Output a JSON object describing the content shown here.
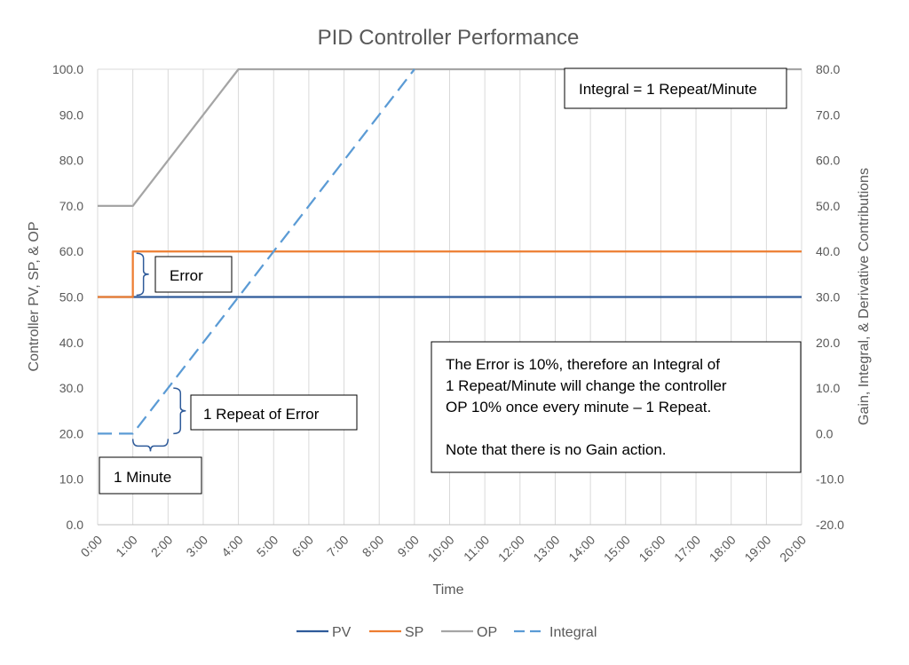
{
  "chart_data": {
    "type": "line",
    "title": "PID Controller Performance",
    "xlabel": "Time",
    "ylabel": "Controller PV, SP, & OP",
    "y2label": "Gain, Integral, & Derivative Contributions",
    "x": [
      0,
      1,
      2,
      3,
      4,
      5,
      6,
      7,
      8,
      9,
      10,
      11,
      12,
      13,
      14,
      15,
      16,
      17,
      18,
      19,
      20
    ],
    "x_tick_labels": [
      "0:00",
      "1:00",
      "2:00",
      "3:00",
      "4:00",
      "5:00",
      "6:00",
      "7:00",
      "8:00",
      "9:00",
      "10:00",
      "11:00",
      "12:00",
      "13:00",
      "14:00",
      "15:00",
      "16:00",
      "17:00",
      "18:00",
      "19:00",
      "20:00"
    ],
    "ylim": [
      0,
      100
    ],
    "y_ticks": [
      0,
      10,
      20,
      30,
      40,
      50,
      60,
      70,
      80,
      90,
      100
    ],
    "y_tick_labels": [
      "0.0",
      "10.0",
      "20.0",
      "30.0",
      "40.0",
      "50.0",
      "60.0",
      "70.0",
      "80.0",
      "90.0",
      "100.0"
    ],
    "y2lim": [
      -20,
      80
    ],
    "y2_ticks": [
      -20,
      -10,
      0,
      10,
      20,
      30,
      40,
      50,
      60,
      70,
      80
    ],
    "y2_tick_labels": [
      "-20.0",
      "-10.0",
      "0.0",
      "10.0",
      "20.0",
      "30.0",
      "40.0",
      "50.0",
      "60.0",
      "70.0",
      "80.0"
    ],
    "grid": "vertical",
    "legend": "bottom",
    "series": [
      {
        "name": "PV",
        "axis": "left",
        "color": "#2f5b9a",
        "dash": "solid",
        "points": [
          [
            0,
            50
          ],
          [
            20,
            50
          ]
        ]
      },
      {
        "name": "SP",
        "axis": "left",
        "color": "#ed7d31",
        "dash": "solid",
        "points": [
          [
            0,
            50
          ],
          [
            1,
            50
          ],
          [
            1,
            60
          ],
          [
            20,
            60
          ]
        ]
      },
      {
        "name": "OP",
        "axis": "left",
        "color": "#a5a5a5",
        "dash": "solid",
        "points": [
          [
            0,
            70
          ],
          [
            1,
            70
          ],
          [
            4,
            100
          ],
          [
            20,
            100
          ]
        ]
      },
      {
        "name": "Integral",
        "axis": "right",
        "color": "#5b9bd5",
        "dash": "dashed",
        "points": [
          [
            0,
            0
          ],
          [
            1,
            0
          ],
          [
            9,
            80
          ]
        ]
      }
    ],
    "annotations": [
      {
        "id": "integral-note",
        "lines": [
          "Integral = 1 Repeat/Minute"
        ]
      },
      {
        "id": "error",
        "lines": [
          "Error"
        ]
      },
      {
        "id": "repeat",
        "lines": [
          "1 Repeat of Error"
        ]
      },
      {
        "id": "minute",
        "lines": [
          "1 Minute"
        ]
      },
      {
        "id": "explain",
        "lines": [
          "The Error is 10%, therefore an Integral of",
          "1 Repeat/Minute will change the controller",
          "OP 10% once every minute – 1 Repeat.",
          "",
          "Note that there is no Gain action."
        ]
      }
    ]
  }
}
